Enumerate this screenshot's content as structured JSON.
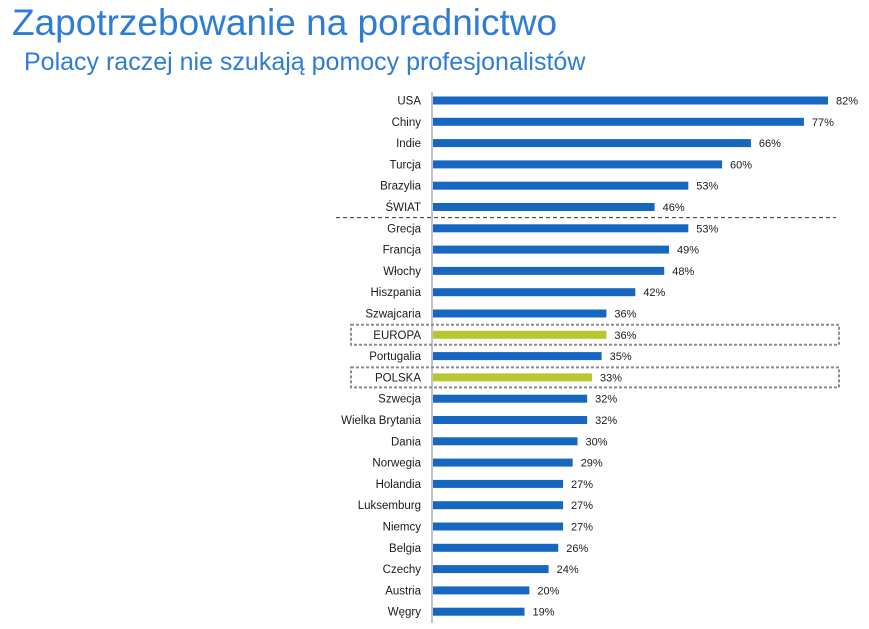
{
  "title": "Zapotrzebowanie na poradnictwo",
  "subtitle": "Polacy raczej nie szukają pomocy profesjonalistów",
  "colors": {
    "bar": "#1667c0",
    "highlight": "#b6c72f",
    "title": "#2e7cd6"
  },
  "chart_data": {
    "type": "bar",
    "orientation": "horizontal",
    "xlim": [
      0,
      82
    ],
    "categories": [
      "USA",
      "Chiny",
      "Indie",
      "Turcja",
      "Brazylia",
      "ŚWIAT",
      "Grecja",
      "Francja",
      "Włochy",
      "Hiszpania",
      "Szwajcaria",
      "EUROPA",
      "Portugalia",
      "POLSKA",
      "Szwecja",
      "Wielka Brytania",
      "Dania",
      "Norwegia",
      "Holandia",
      "Luksemburg",
      "Niemcy",
      "Belgia",
      "Czechy",
      "Austria",
      "Węgry"
    ],
    "values": [
      82,
      77,
      66,
      60,
      53,
      46,
      53,
      49,
      48,
      42,
      36,
      36,
      35,
      33,
      32,
      32,
      30,
      29,
      27,
      27,
      27,
      26,
      24,
      20,
      19
    ],
    "value_labels": [
      "82%",
      "77%",
      "66%",
      "60%",
      "53%",
      "46%",
      "53%",
      "49%",
      "48%",
      "42%",
      "36%",
      "36%",
      "35%",
      "33%",
      "32%",
      "32%",
      "30%",
      "29%",
      "27%",
      "27%",
      "27%",
      "26%",
      "24%",
      "20%",
      "19%"
    ],
    "highlighted": [
      "EUROPA",
      "POLSKA"
    ],
    "separator_after": "ŚWIAT",
    "grid": false,
    "legend": "none"
  }
}
